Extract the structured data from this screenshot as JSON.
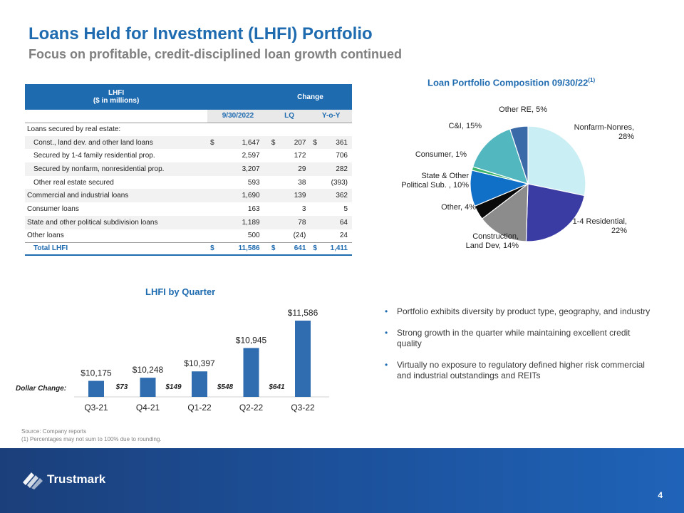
{
  "title": "Loans Held for Investment (LHFI) Portfolio",
  "subtitle": "Focus on profitable, credit-disciplined loan growth continued",
  "table": {
    "header_lhfi": "LHFI",
    "header_units": "($ in millions)",
    "header_change": "Change",
    "col_date": "9/30/2022",
    "col_lq": "LQ",
    "col_yoy": "Y-o-Y",
    "rows": [
      {
        "label": "Loans secured by real estate:",
        "value": "",
        "lq": "",
        "yoy": "",
        "cur": false,
        "indent": false
      },
      {
        "label": "Const., land dev. and other land loans",
        "value": "1,647",
        "lq": "207",
        "yoy": "361",
        "cur": true,
        "indent": true
      },
      {
        "label": "Secured by 1-4 family residential prop.",
        "value": "2,597",
        "lq": "172",
        "yoy": "706",
        "cur": false,
        "indent": true
      },
      {
        "label": "Secured by nonfarm, nonresidential prop.",
        "value": "3,207",
        "lq": "29",
        "yoy": "282",
        "cur": false,
        "indent": true
      },
      {
        "label": "Other real estate secured",
        "value": "593",
        "lq": "38",
        "yoy": "(393)",
        "cur": false,
        "indent": true
      },
      {
        "label": "Commercial and industrial loans",
        "value": "1,690",
        "lq": "139",
        "yoy": "362",
        "cur": false,
        "indent": false
      },
      {
        "label": "Consumer loans",
        "value": "163",
        "lq": "3",
        "yoy": "5",
        "cur": false,
        "indent": false
      },
      {
        "label": "State and other political subdivision loans",
        "value": "1,189",
        "lq": "78",
        "yoy": "64",
        "cur": false,
        "indent": false
      },
      {
        "label": "Other loans",
        "value": "500",
        "lq": "(24)",
        "yoy": "24",
        "cur": false,
        "indent": false
      }
    ],
    "total": {
      "label": "Total LHFI",
      "value": "11,586",
      "lq": "641",
      "yoy": "1,411"
    },
    "currency_symbol": "$"
  },
  "bullets": [
    "Portfolio exhibits diversity by product type, geography, and industry",
    "Strong growth in the quarter while maintaining excellent credit quality",
    "Virtually no exposure to regulatory defined higher risk commercial and industrial outstandings and REITs"
  ],
  "bullet_glyph": "•",
  "footnotes": {
    "source": "Source: Company reports",
    "note": "(1) Percentages may not sum to 100% due to rounding."
  },
  "footer": {
    "logo_text": "Trustmark",
    "page_number": "4"
  },
  "chart_data": [
    {
      "type": "pie",
      "title": "Loan Portfolio Composition 09/30/22",
      "title_superscript": "(1)",
      "slices": [
        {
          "label_lines": [
            "Nonfarm-Nonres,",
            "28%"
          ],
          "name": "Nonfarm-Nonres",
          "value": 28,
          "color": "#c9eef3"
        },
        {
          "label_lines": [
            "1-4 Residential,",
            "22%"
          ],
          "name": "1-4 Residential",
          "value": 22,
          "color": "#3a3ca3"
        },
        {
          "label_lines": [
            "Construction,",
            "Land Dev, 14%"
          ],
          "name": "Construction, Land Dev",
          "value": 14,
          "color": "#8c8c8c"
        },
        {
          "label_lines": [
            "Other, 4%"
          ],
          "name": "Other",
          "value": 4,
          "color": "#0a0a0a"
        },
        {
          "label_lines": [
            "State & Other",
            "Political Sub. , 10%"
          ],
          "name": "State & Other Political Sub.",
          "value": 10,
          "color": "#1070c8"
        },
        {
          "label_lines": [
            "Consumer, 1%"
          ],
          "name": "Consumer",
          "value": 1,
          "color": "#3cb56a"
        },
        {
          "label_lines": [
            "C&I, 15%"
          ],
          "name": "C&I",
          "value": 15,
          "color": "#52b7bf"
        },
        {
          "label_lines": [
            "Other RE, 5%"
          ],
          "name": "Other RE",
          "value": 5,
          "color": "#3b6aa8"
        }
      ]
    },
    {
      "type": "bar",
      "title": "LHFI by Quarter",
      "categories": [
        "Q3-21",
        "Q4-21",
        "Q1-22",
        "Q2-22",
        "Q3-22"
      ],
      "values": [
        10175,
        10248,
        10397,
        10945,
        11586
      ],
      "value_labels": [
        "$10,175",
        "$10,248",
        "$10,397",
        "$10,945",
        "$11,586"
      ],
      "dollar_change_label": "Dollar Change:",
      "dollar_changes": [
        "$73",
        "$149",
        "$548",
        "$641"
      ],
      "bar_color": "#2f6db0"
    }
  ]
}
